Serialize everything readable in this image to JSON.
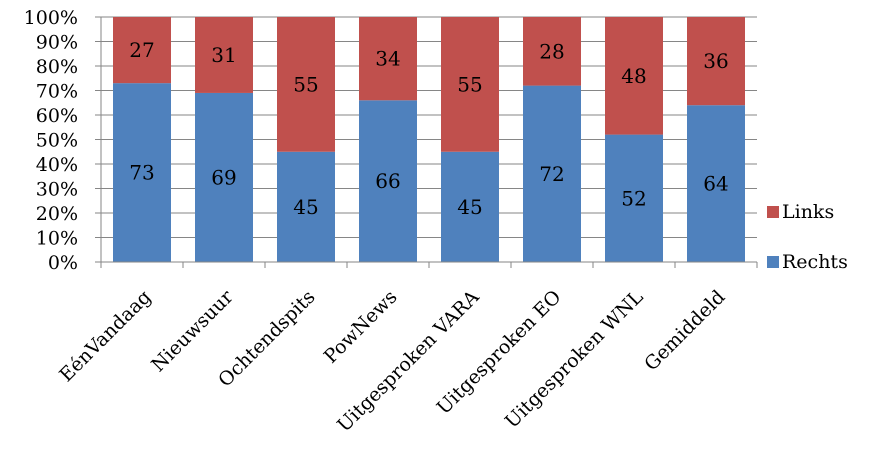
{
  "chart_data": {
    "type": "bar",
    "stacked": true,
    "percent": true,
    "categories": [
      "EénVandaag",
      "Nieuwsuur",
      "Ochtendspits",
      "PowNews",
      "Uitgesproken VARA",
      "Uitgesproken EO",
      "Uitgesproken WNL",
      "Gemiddeld"
    ],
    "series": [
      {
        "name": "Rechts",
        "color": "#4F81BD",
        "values": [
          73,
          69,
          45,
          66,
          45,
          72,
          52,
          64
        ]
      },
      {
        "name": "Links",
        "color": "#C0504D",
        "values": [
          27,
          31,
          55,
          34,
          55,
          28,
          48,
          36
        ]
      }
    ],
    "y_ticks": [
      "0%",
      "10%",
      "20%",
      "30%",
      "40%",
      "50%",
      "60%",
      "70%",
      "80%",
      "90%",
      "100%"
    ],
    "ylim": [
      0,
      100
    ],
    "grid": true,
    "legend": {
      "position": "right",
      "entries": [
        "Links",
        "Rechts"
      ]
    }
  }
}
